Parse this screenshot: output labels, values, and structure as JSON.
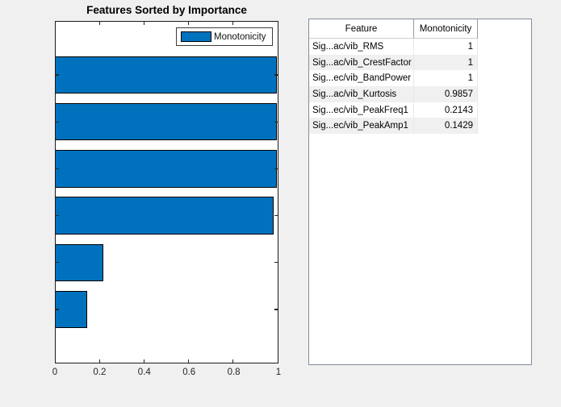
{
  "figure": {
    "background": "#f0f0f0"
  },
  "chart_data": {
    "type": "bar",
    "orientation": "horizontal",
    "title": "Features Sorted by Importance",
    "categories": [
      "Sig...ac/vib_RMS",
      "Sig...ac/vib_CrestFactor",
      "Sig...ec/vib_BandPower",
      "Sig...ac/vib_Kurtosis",
      "Sig...ec/vib_PeakFreq1",
      "Sig...ec/vib_PeakAmp1"
    ],
    "values": [
      1,
      1,
      1,
      0.9857,
      0.2143,
      0.1429
    ],
    "series_name": "Monotonicity",
    "xlim": [
      0,
      1
    ],
    "x_tick_labels": [
      "0",
      "0.2",
      "0.4",
      "0.6",
      "0.8",
      "1"
    ],
    "x_tick_values": [
      0,
      0.2,
      0.4,
      0.6,
      0.8,
      1
    ],
    "bar_color": "#0072BD",
    "grid": false,
    "legend": {
      "label": "Monotonicity",
      "position": "northeast"
    }
  },
  "table": {
    "columns": {
      "feature": "Feature",
      "monotonicity": "Monotonicity"
    },
    "rows": [
      {
        "feature": "Sig...ac/vib_RMS",
        "monotonicity": "1"
      },
      {
        "feature": "Sig...ac/vib_CrestFactor",
        "monotonicity": "1"
      },
      {
        "feature": "Sig...ec/vib_BandPower",
        "monotonicity": "1"
      },
      {
        "feature": "Sig...ac/vib_Kurtosis",
        "monotonicity": "0.9857"
      },
      {
        "feature": "Sig...ec/vib_PeakFreq1",
        "monotonicity": "0.2143"
      },
      {
        "feature": "Sig...ec/vib_PeakAmp1",
        "monotonicity": "0.1429"
      }
    ]
  }
}
